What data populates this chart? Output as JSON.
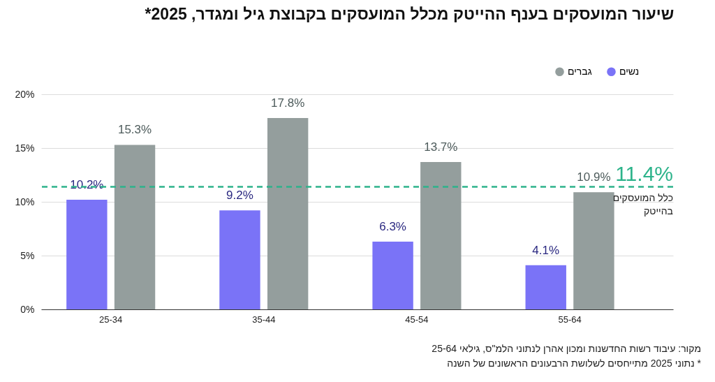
{
  "chart_data": {
    "type": "bar",
    "title": "שיעור המועסקים בענף ההייטק מכלל המועסקים בקבוצת גיל ומגדר, 2025*",
    "categories": [
      "25-34",
      "35-44",
      "45-54",
      "55-64"
    ],
    "series": [
      {
        "name": "נשים",
        "color": "#7a73f7",
        "values": [
          10.2,
          9.2,
          6.3,
          4.1
        ],
        "value_labels": [
          "10.2%",
          "9.2%",
          "6.3%",
          "4.1%"
        ]
      },
      {
        "name": "גברים",
        "color": "#949e9d",
        "values": [
          15.3,
          17.8,
          13.7,
          10.9
        ],
        "value_labels": [
          "15.3%",
          "17.8%",
          "13.7%",
          "10.9%"
        ]
      }
    ],
    "ylim": [
      0,
      20
    ],
    "yticks": [
      {
        "value": 0,
        "label": "0%"
      },
      {
        "value": 5,
        "label": "5%"
      },
      {
        "value": 10,
        "label": "10%"
      },
      {
        "value": 15,
        "label": "15%"
      },
      {
        "value": 20,
        "label": "20%"
      }
    ],
    "grid": "y",
    "legend": "top right",
    "ref_lines": [
      {
        "axis": "y",
        "value": 11.4,
        "label": "11.4%",
        "color": "#2db38b",
        "line_style": "dashed"
      }
    ],
    "annotations": [
      {
        "text": "כלל המועסקים בהייטק",
        "y": 11.4
      },
      "מקור: עיבוד רשות החדשנות ומכון אהרן לנתוני הלמ\"ס, גילאי 25-64",
      "* נתוני 2025 מתייחסים לשלושת הרבעונים הראשונים של השנה"
    ]
  }
}
